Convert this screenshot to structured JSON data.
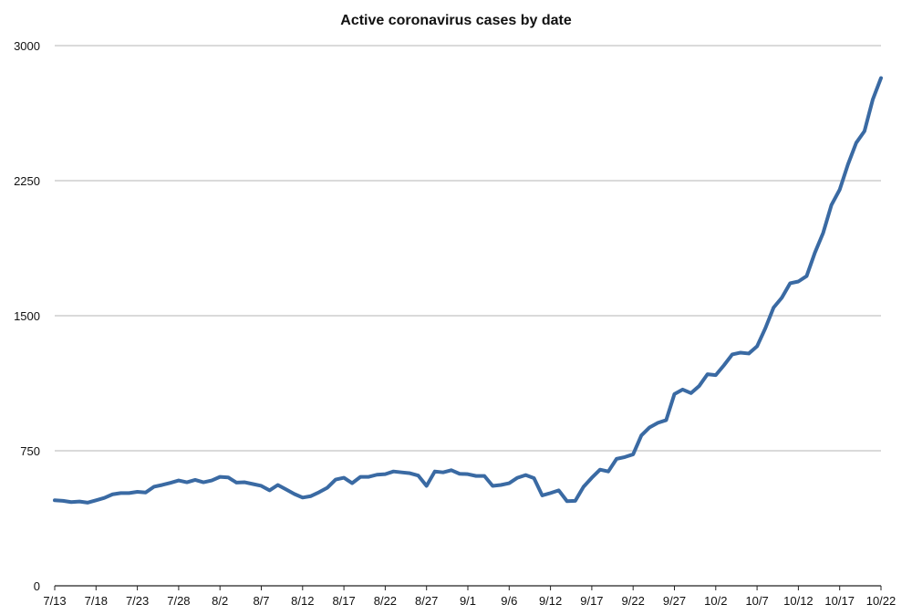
{
  "chart_data": {
    "type": "line",
    "title": "Active coronavirus cases by date",
    "xlabel": "",
    "ylabel": "",
    "ylim": [
      0,
      3000
    ],
    "yticks": [
      "0",
      "750",
      "1500",
      "2250",
      "3000"
    ],
    "xticks": [
      "7/13",
      "7/18",
      "7/23",
      "7/28",
      "8/2",
      "8/7",
      "8/12",
      "8/17",
      "8/22",
      "8/27",
      "9/1",
      "9/6",
      "9/12",
      "9/17",
      "9/22",
      "9/27",
      "10/2",
      "10/7",
      "10/12",
      "10/17",
      "10/22"
    ],
    "grid": true,
    "legend": "none",
    "line_color": "#3a6aa3",
    "x": [
      "7/13",
      "7/14",
      "7/15",
      "7/16",
      "7/17",
      "7/18",
      "7/19",
      "7/20",
      "7/21",
      "7/22",
      "7/23",
      "7/24",
      "7/25",
      "7/26",
      "7/27",
      "7/28",
      "7/29",
      "7/30",
      "7/31",
      "8/1",
      "8/2",
      "8/3",
      "8/4",
      "8/5",
      "8/6",
      "8/7",
      "8/8",
      "8/9",
      "8/10",
      "8/11",
      "8/12",
      "8/13",
      "8/14",
      "8/15",
      "8/16",
      "8/17",
      "8/18",
      "8/19",
      "8/20",
      "8/21",
      "8/22",
      "8/23",
      "8/24",
      "8/25",
      "8/26",
      "8/27",
      "8/28",
      "8/29",
      "8/30",
      "8/31",
      "9/1",
      "9/2",
      "9/3",
      "9/4",
      "9/5",
      "9/6",
      "9/7",
      "9/8",
      "9/9",
      "9/10",
      "9/12",
      "9/13",
      "9/14",
      "9/15",
      "9/16",
      "9/17",
      "9/18",
      "9/19",
      "9/20",
      "9/21",
      "9/22",
      "9/23",
      "9/24",
      "9/25",
      "9/26",
      "9/27",
      "9/28",
      "9/29",
      "9/30",
      "10/1",
      "10/2",
      "10/3",
      "10/4",
      "10/5",
      "10/6",
      "10/7",
      "10/8",
      "10/9",
      "10/10",
      "10/11",
      "10/12",
      "10/13",
      "10/14",
      "10/15",
      "10/16",
      "10/17",
      "10/18",
      "10/19",
      "10/20",
      "10/21",
      "10/22"
    ],
    "series": [
      {
        "values": [
          475,
          472,
          465,
          468,
          462,
          475,
          488,
          508,
          515,
          515,
          522,
          518,
          550,
          560,
          572,
          585,
          575,
          588,
          575,
          585,
          605,
          602,
          573,
          575,
          565,
          555,
          530,
          560,
          535,
          510,
          490,
          498,
          520,
          545,
          590,
          600,
          570,
          605,
          605,
          617,
          620,
          635,
          630,
          625,
          612,
          555,
          635,
          630,
          642,
          622,
          620,
          610,
          610,
          555,
          560,
          570,
          600,
          615,
          598,
          502,
          515,
          530,
          470,
          472,
          550,
          600,
          645,
          635,
          705,
          715,
          730,
          835,
          880,
          905,
          920,
          1065,
          1090,
          1070,
          1110,
          1175,
          1170,
          1225,
          1285,
          1295,
          1290,
          1330,
          1430,
          1545,
          1600,
          1680,
          1690,
          1720,
          1850,
          1960,
          2115,
          2200,
          2340,
          2460,
          2525,
          2700,
          2820
        ]
      }
    ]
  }
}
